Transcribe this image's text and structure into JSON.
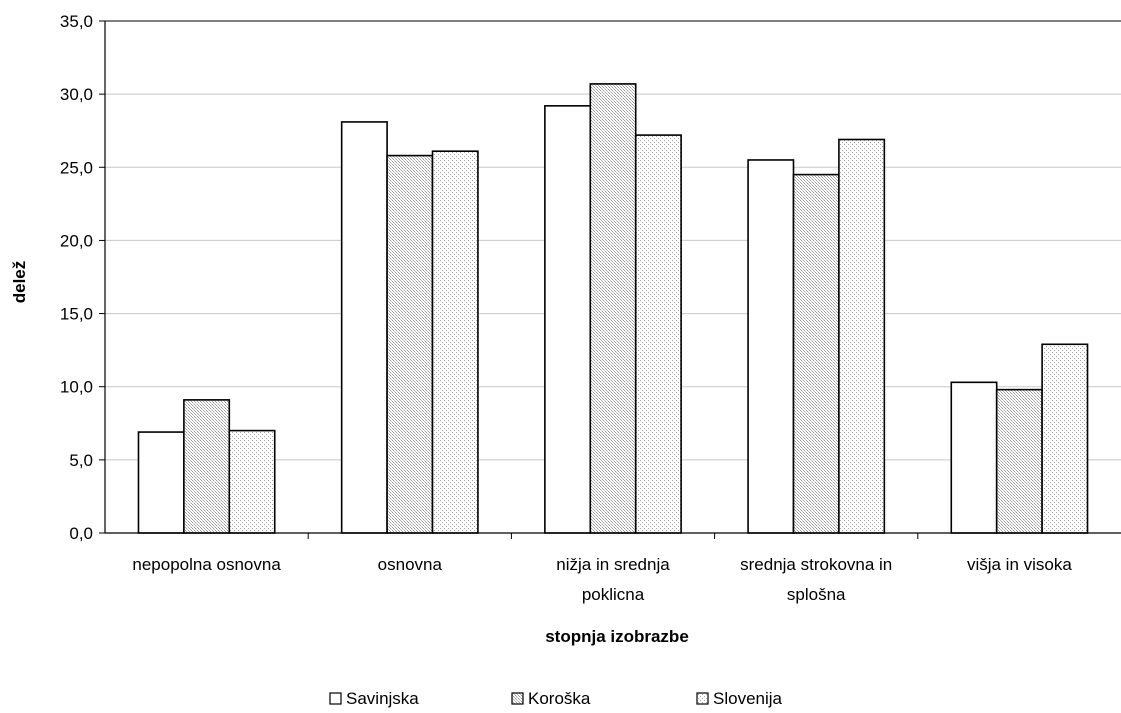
{
  "chart_data": {
    "type": "bar",
    "categories": [
      [
        "nepopolna osnovna"
      ],
      [
        "osnovna"
      ],
      [
        "nižja in srednja",
        "poklicna"
      ],
      [
        "srednja strokovna in",
        "splošna"
      ],
      [
        "višja in visoka"
      ]
    ],
    "series": [
      {
        "name": "Savinjska",
        "values": [
          6.9,
          28.1,
          29.2,
          25.5,
          10.3
        ]
      },
      {
        "name": "Koroška",
        "values": [
          9.1,
          25.8,
          30.7,
          24.5,
          9.8
        ]
      },
      {
        "name": "Slovenija",
        "values": [
          7.0,
          26.1,
          27.2,
          26.9,
          12.9
        ]
      }
    ],
    "xlabel": "stopnja izobrazbe",
    "ylabel": "delež",
    "ylim": [
      0,
      35
    ],
    "yticks": [
      "0,0",
      "5,0",
      "10,0",
      "15,0",
      "20,0",
      "25,0",
      "30,0",
      "35,0"
    ],
    "grid": true,
    "legend": "bottom",
    "colors": {
      "bar_stroke": "#000000",
      "gridline": "#c8c8c8",
      "axis": "#000000",
      "top_border": "#808080",
      "fill_savinjska": "#ffffff",
      "fill_koroska": "#e6e6e6",
      "fill_slovenija": "#f3f3f3"
    },
    "patterns": [
      "none",
      "fine-hatch",
      "fine-dots"
    ]
  }
}
